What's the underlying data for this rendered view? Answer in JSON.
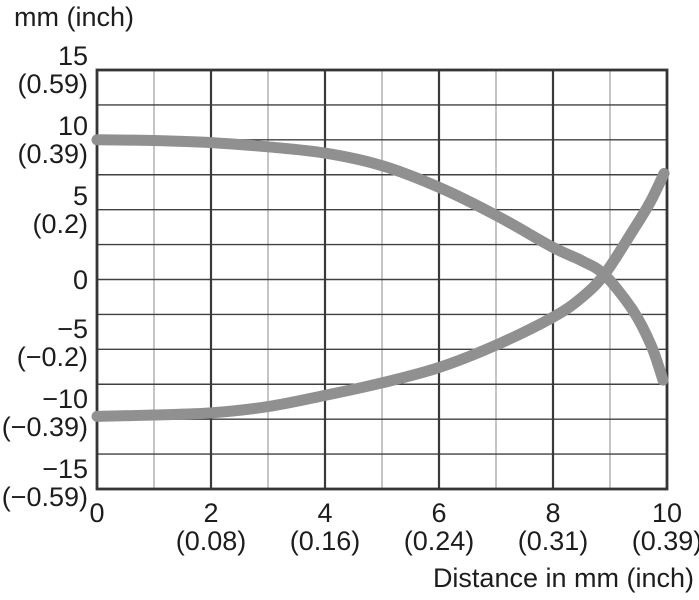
{
  "title": "mm (inch)",
  "x_axis_label": "Distance in mm (inch)",
  "colors": {
    "background": "#ffffff",
    "text": "#1d1d1d",
    "curve": "#909090",
    "grid_major": "#3a3a3a",
    "grid_minor": "#c3c6c9",
    "grid_horizontal": "#404040",
    "border": "#353535"
  },
  "chart_data": {
    "type": "line",
    "title": "",
    "xlabel": "Distance in mm (inch)",
    "ylabel": "mm (inch)",
    "xlim": [
      0,
      10
    ],
    "ylim": [
      -15,
      15
    ],
    "grid": "on",
    "legend": "none",
    "x_grid_major_step": 2,
    "x_grid_minor_step": 1,
    "y_grid_step": 2.5,
    "x_ticks": [
      {
        "label_mm": "0",
        "label_inch": "",
        "x": 0
      },
      {
        "label_mm": "2",
        "label_inch": "(0.08)",
        "x": 2
      },
      {
        "label_mm": "4",
        "label_inch": "(0.16)",
        "x": 4
      },
      {
        "label_mm": "6",
        "label_inch": "(0.24)",
        "x": 6
      },
      {
        "label_mm": "8",
        "label_inch": "(0.31)",
        "x": 8
      },
      {
        "label_mm": "10",
        "label_inch": "(0.39)",
        "x": 10
      }
    ],
    "y_ticks": [
      {
        "label_mm": "15",
        "label_inch": "(0.59)",
        "y": 15
      },
      {
        "label_mm": "10",
        "label_inch": "(0.39)",
        "y": 10
      },
      {
        "label_mm": "5",
        "label_inch": "(0.2)",
        "y": 5
      },
      {
        "label_mm": "0",
        "label_inch": "",
        "y": 0
      },
      {
        "label_mm": "−5",
        "label_inch": "(−0.2)",
        "y": -5
      },
      {
        "label_mm": "−10",
        "label_inch": "(−0.39)",
        "y": -10
      },
      {
        "label_mm": "−15",
        "label_inch": "(−0.59)",
        "y": -15
      }
    ],
    "series": [
      {
        "name": "upper-curve-descending",
        "points": [
          [
            0,
            10.0
          ],
          [
            1,
            9.95
          ],
          [
            2,
            9.8
          ],
          [
            3,
            9.5
          ],
          [
            4,
            9.05
          ],
          [
            5,
            8.15
          ],
          [
            6,
            6.6
          ],
          [
            7,
            4.6
          ],
          [
            8,
            2.3
          ],
          [
            8.5,
            1.35
          ],
          [
            8.9,
            0.35
          ],
          [
            9.4,
            -2.2
          ],
          [
            9.72,
            -4.7
          ],
          [
            9.93,
            -7.2
          ]
        ]
      },
      {
        "name": "lower-curve-ascending",
        "points": [
          [
            0,
            -9.8
          ],
          [
            1,
            -9.7
          ],
          [
            2,
            -9.55
          ],
          [
            3,
            -9.1
          ],
          [
            4,
            -8.3
          ],
          [
            5,
            -7.4
          ],
          [
            6,
            -6.3
          ],
          [
            7,
            -4.7
          ],
          [
            8,
            -2.7
          ],
          [
            8.5,
            -1.3
          ],
          [
            8.9,
            0.35
          ],
          [
            9.37,
            3.3
          ],
          [
            9.7,
            5.5
          ],
          [
            9.95,
            7.6
          ]
        ]
      }
    ]
  }
}
